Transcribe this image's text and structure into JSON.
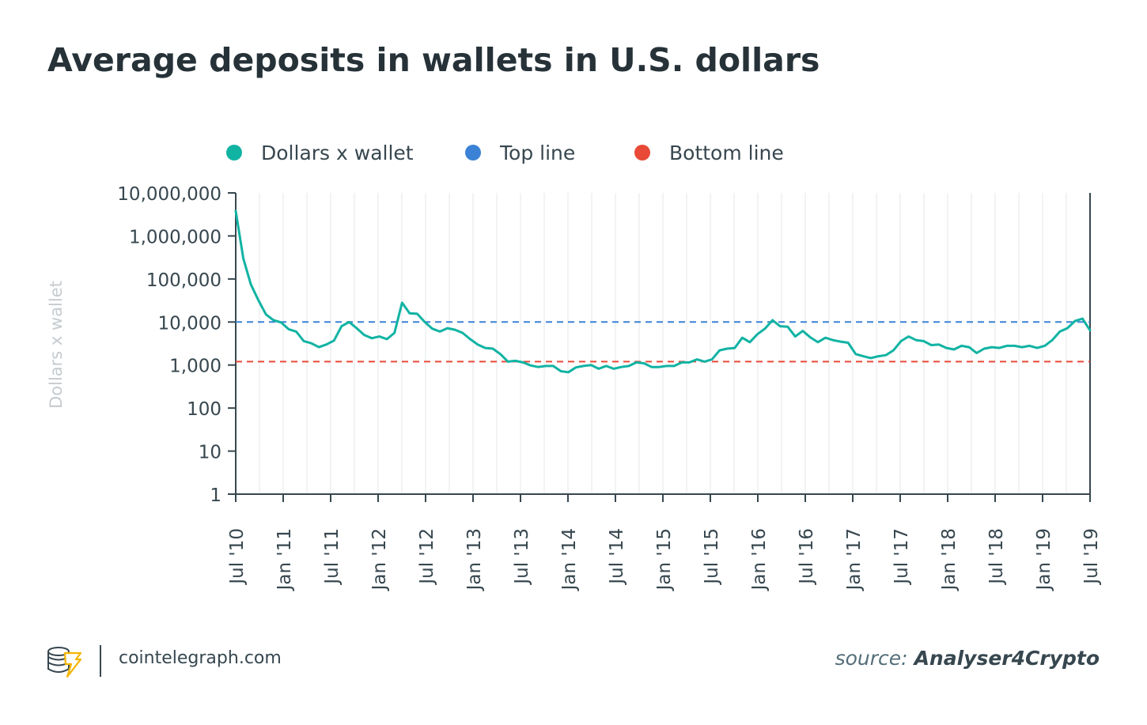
{
  "title": "Average deposits in wallets in U.S. dollars",
  "footer": {
    "site": "cointelegraph.com",
    "source_prefix": "source:",
    "source_name": "Analyser4Crypto",
    "logo_icon": "cointelegraph-logo-icon"
  },
  "colors": {
    "series": "#11b3a3",
    "top_line": "#3b82d6",
    "bottom_line": "#e84a37",
    "axis": "#37474f",
    "grid": "#e3e7ea",
    "ylabel": "#c5cbcf"
  },
  "chart_data": {
    "type": "line",
    "title": "Average deposits in wallets in U.S. dollars",
    "xlabel": "",
    "ylabel": "Dollars x wallet",
    "y_scale": "log",
    "ylim": [
      1,
      10000000
    ],
    "xlim": [
      "2010-07",
      "2019-07"
    ],
    "grid": true,
    "legend_position": "top",
    "y_ticks": [
      1,
      10,
      100,
      1000,
      10000,
      100000,
      1000000,
      10000000
    ],
    "y_tick_labels": [
      "1",
      "10",
      "100",
      "1,000",
      "10,000",
      "100,000",
      "1,000,000",
      "10,000,000"
    ],
    "x_tick_labels": [
      "Jul '10",
      "Jan '11",
      "Jul '11",
      "Jan '12",
      "Jul '12",
      "Jan '13",
      "Jul '13",
      "Jan '14",
      "Jul '14",
      "Jan '15",
      "Jul '15",
      "Jan '16",
      "Jul '16",
      "Jan '17",
      "Jul '17",
      "Jan '18",
      "Jul '18",
      "Jan '19",
      "Jul '19"
    ],
    "series": [
      {
        "name": "Dollars x wallet",
        "color": "#11b3a3",
        "points": [
          [
            "2010-07",
            3800000
          ],
          [
            "2010-08",
            300000
          ],
          [
            "2010-09",
            75000
          ],
          [
            "2010-10",
            32000
          ],
          [
            "2010-11",
            15000
          ],
          [
            "2010-12",
            11000
          ],
          [
            "2011-01",
            9800
          ],
          [
            "2011-02",
            6800
          ],
          [
            "2011-03",
            6000
          ],
          [
            "2011-04",
            3600
          ],
          [
            "2011-05",
            3200
          ],
          [
            "2011-06",
            2600
          ],
          [
            "2011-07",
            3000
          ],
          [
            "2011-08",
            3700
          ],
          [
            "2011-09",
            8000
          ],
          [
            "2011-10",
            10000
          ],
          [
            "2011-11",
            7200
          ],
          [
            "2011-12",
            5000
          ],
          [
            "2012-01",
            4200
          ],
          [
            "2012-02",
            4600
          ],
          [
            "2012-03",
            4000
          ],
          [
            "2012-04",
            5600
          ],
          [
            "2012-05",
            28000
          ],
          [
            "2012-06",
            16000
          ],
          [
            "2012-07",
            15500
          ],
          [
            "2012-08",
            10000
          ],
          [
            "2012-09",
            7000
          ],
          [
            "2012-10",
            6000
          ],
          [
            "2012-11",
            7200
          ],
          [
            "2012-12",
            6600
          ],
          [
            "2013-01",
            5600
          ],
          [
            "2013-02",
            4000
          ],
          [
            "2013-03",
            3000
          ],
          [
            "2013-04",
            2500
          ],
          [
            "2013-05",
            2400
          ],
          [
            "2013-06",
            1800
          ],
          [
            "2013-07",
            1200
          ],
          [
            "2013-08",
            1250
          ],
          [
            "2013-09",
            1150
          ],
          [
            "2013-10",
            980
          ],
          [
            "2013-11",
            900
          ],
          [
            "2013-12",
            950
          ],
          [
            "2014-01",
            950
          ],
          [
            "2014-02",
            720
          ],
          [
            "2014-03",
            680
          ],
          [
            "2014-04",
            880
          ],
          [
            "2014-05",
            950
          ],
          [
            "2014-06",
            1000
          ],
          [
            "2014-07",
            820
          ],
          [
            "2014-08",
            950
          ],
          [
            "2014-09",
            820
          ],
          [
            "2014-10",
            900
          ],
          [
            "2014-11",
            950
          ],
          [
            "2014-12",
            1150
          ],
          [
            "2015-01",
            1100
          ],
          [
            "2015-02",
            900
          ],
          [
            "2015-03",
            900
          ],
          [
            "2015-04",
            950
          ],
          [
            "2015-05",
            950
          ],
          [
            "2015-06",
            1150
          ],
          [
            "2015-07",
            1150
          ],
          [
            "2015-08",
            1350
          ],
          [
            "2015-09",
            1200
          ],
          [
            "2015-10",
            1350
          ],
          [
            "2015-11",
            2200
          ],
          [
            "2015-12",
            2400
          ],
          [
            "2016-01",
            2500
          ],
          [
            "2016-02",
            4300
          ],
          [
            "2016-03",
            3400
          ],
          [
            "2016-04",
            5200
          ],
          [
            "2016-05",
            7000
          ],
          [
            "2016-06",
            11000
          ],
          [
            "2016-07",
            8000
          ],
          [
            "2016-08",
            7800
          ],
          [
            "2016-09",
            4600
          ],
          [
            "2016-10",
            6200
          ],
          [
            "2016-11",
            4400
          ],
          [
            "2016-12",
            3400
          ],
          [
            "2017-01",
            4300
          ],
          [
            "2017-02",
            3800
          ],
          [
            "2017-03",
            3500
          ],
          [
            "2017-04",
            3300
          ],
          [
            "2017-05",
            1800
          ],
          [
            "2017-06",
            1600
          ],
          [
            "2017-07",
            1450
          ],
          [
            "2017-08",
            1600
          ],
          [
            "2017-09",
            1700
          ],
          [
            "2017-10",
            2200
          ],
          [
            "2017-11",
            3600
          ],
          [
            "2017-12",
            4600
          ],
          [
            "2018-01",
            3800
          ],
          [
            "2018-02",
            3600
          ],
          [
            "2018-03",
            2900
          ],
          [
            "2018-04",
            3000
          ],
          [
            "2018-05",
            2500
          ],
          [
            "2018-06",
            2300
          ],
          [
            "2018-07",
            2800
          ],
          [
            "2018-08",
            2600
          ],
          [
            "2018-09",
            1900
          ],
          [
            "2018-10",
            2400
          ],
          [
            "2018-11",
            2600
          ],
          [
            "2018-12",
            2500
          ],
          [
            "2019-01",
            2800
          ],
          [
            "2019-02",
            2800
          ],
          [
            "2019-03",
            2600
          ],
          [
            "2019-04",
            2800
          ],
          [
            "2019-05",
            2500
          ],
          [
            "2019-06",
            2800
          ],
          [
            "2019-07",
            3800
          ],
          [
            "2019-08",
            6000
          ],
          [
            "2019-09",
            7200
          ],
          [
            "2019-10",
            10500
          ],
          [
            "2019-11",
            12000
          ],
          [
            "2019-12",
            6400
          ]
        ]
      },
      {
        "name": "Top line",
        "color": "#3b82d6",
        "style": "dashed",
        "value": 10000
      },
      {
        "name": "Bottom line",
        "color": "#e84a37",
        "style": "dashed",
        "value": 1200
      }
    ]
  }
}
